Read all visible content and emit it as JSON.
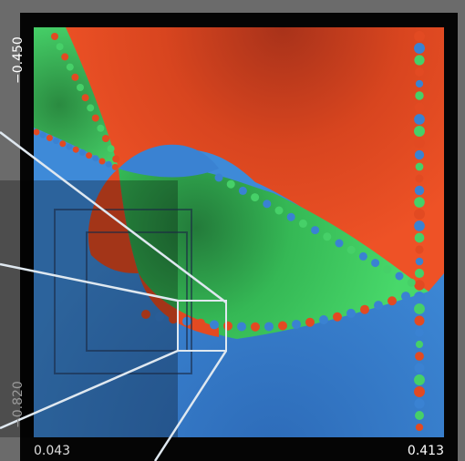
{
  "axis_labels": {
    "top_left": "−0.450",
    "bottom_left": "−0.820",
    "x_min": "0.043",
    "x_max": "0.413"
  }
}
